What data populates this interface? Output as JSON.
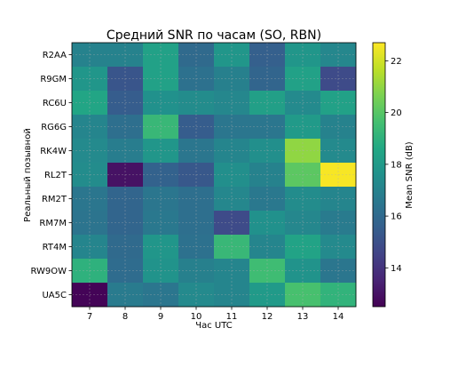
{
  "chart_data": {
    "type": "heatmap",
    "title": "Средний SNR по часам (SO, RBN)",
    "xlabel": "Час UTC",
    "ylabel": "Реальный позывной",
    "x": [
      "7",
      "8",
      "9",
      "10",
      "11",
      "12",
      "13",
      "14"
    ],
    "y": [
      "R2AA",
      "R9GM",
      "RC6U",
      "RG6G",
      "RK4W",
      "RL2T",
      "RM2T",
      "RM7M",
      "RT4M",
      "RW9OW",
      "UA5C"
    ],
    "values": [
      [
        17.0,
        17.0,
        18.3,
        16.0,
        17.8,
        15.6,
        17.8,
        17.2
      ],
      [
        17.8,
        15.2,
        18.3,
        16.3,
        16.9,
        15.8,
        18.3,
        14.8
      ],
      [
        18.5,
        15.5,
        17.6,
        17.4,
        17.2,
        18.2,
        17.3,
        18.3
      ],
      [
        17.1,
        16.2,
        19.3,
        15.5,
        16.5,
        16.5,
        18.0,
        17.0
      ],
      [
        17.3,
        16.8,
        17.8,
        16.5,
        17.1,
        17.5,
        21.0,
        17.3
      ],
      [
        17.4,
        13.0,
        15.7,
        15.3,
        17.5,
        17.0,
        20.1,
        22.6
      ],
      [
        16.5,
        15.8,
        16.5,
        16.2,
        17.2,
        16.6,
        17.4,
        17.1
      ],
      [
        16.4,
        15.8,
        16.6,
        16.2,
        14.8,
        17.6,
        17.2,
        16.7
      ],
      [
        17.1,
        16.0,
        17.8,
        16.3,
        19.3,
        17.1,
        18.4,
        17.3
      ],
      [
        19.0,
        16.1,
        17.7,
        16.9,
        17.1,
        19.5,
        17.7,
        16.5
      ],
      [
        12.6,
        16.7,
        16.5,
        17.3,
        17.1,
        18.0,
        19.7,
        19.1
      ]
    ],
    "colorbar": {
      "label": "Mean SNR (dB)",
      "min": 12.5,
      "max": 22.7,
      "ticks": [
        14,
        16,
        18,
        20,
        22
      ]
    },
    "colormap": "viridis",
    "grid": true
  }
}
